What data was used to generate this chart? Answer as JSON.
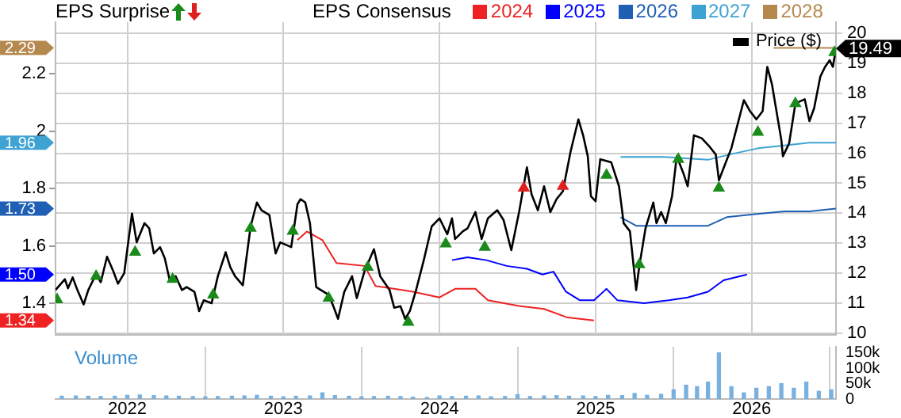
{
  "chart_data": [
    {
      "type": "line",
      "title": "EPS Surprise",
      "legend_title": "EPS Consensus",
      "legend": "top",
      "grid": true,
      "tick_labels": "y",
      "xlim": [
        2021.54,
        2026.54
      ],
      "xticks": [
        2022,
        2023,
        2024,
        2025,
        2026
      ],
      "ylim": [
        1.29,
        2.38
      ],
      "yticks": [
        1.4,
        1.6,
        1.8,
        2,
        2.2
      ],
      "y2lim": [
        9.95,
        20.37
      ],
      "annotations": [
        "2.29",
        "1.96",
        "1.73",
        "1.50",
        "1.34"
      ],
      "y2ticks": [
        10,
        11,
        12,
        13,
        14,
        15,
        16,
        17,
        18,
        19,
        20
      ],
      "series": [
        {
          "name": "Price ($)",
          "axis": "y2",
          "color": "#000000",
          "x": [
            2021.54,
            2021.6,
            2021.62,
            2021.65,
            2021.68,
            2021.72,
            2021.75,
            2021.8,
            2021.83,
            2021.87,
            2021.91,
            2021.94,
            2021.98,
            2022.0,
            2022.03,
            2022.06,
            2022.11,
            2022.14,
            2022.17,
            2022.21,
            2022.24,
            2022.27,
            2022.31,
            2022.35,
            2022.38,
            2022.43,
            2022.46,
            2022.49,
            2022.54,
            2022.58,
            2022.63,
            2022.66,
            2022.69,
            2022.74,
            2022.79,
            2022.83,
            2022.86,
            2022.91,
            2022.95,
            2022.98,
            2023.05,
            2023.09,
            2023.11,
            2023.14,
            2023.17,
            2023.21,
            2023.24,
            2023.29,
            2023.32,
            2023.35,
            2023.39,
            2023.44,
            2023.47,
            2023.52,
            2023.58,
            2023.62,
            2023.68,
            2023.71,
            2023.75,
            2023.78,
            2023.81,
            2023.85,
            2023.9,
            2023.95,
            2024.0,
            2024.05,
            2024.08,
            2024.1,
            2024.15,
            2024.18,
            2024.23,
            2024.27,
            2024.31,
            2024.37,
            2024.41,
            2024.46,
            2024.51,
            2024.56,
            2024.59,
            2024.63,
            2024.67,
            2024.71,
            2024.75,
            2024.79,
            2024.84,
            2024.89,
            2024.92,
            2024.95,
            2024.97,
            2025.0,
            2025.03,
            2025.1,
            2025.15,
            2025.18,
            2025.22,
            2025.26,
            2025.28,
            2025.32,
            2025.37,
            2025.39,
            2025.42,
            2025.45,
            2025.49,
            2025.52,
            2025.56,
            2025.59,
            2025.63,
            2025.68,
            2025.73,
            2025.77,
            2025.79,
            2025.83,
            2025.87,
            2025.91,
            2025.95,
            2025.99,
            2026.03,
            2026.07,
            2026.1,
            2026.13,
            2026.19,
            2026.2,
            2026.24,
            2026.28,
            2026.34,
            2026.37,
            2026.4,
            2026.44,
            2026.47,
            2026.5,
            2026.52,
            2026.54
          ],
          "values": [
            11.44,
            11.8,
            11.5,
            11.86,
            11.44,
            10.96,
            11.44,
            11.97,
            11.7,
            12.55,
            12.07,
            11.65,
            12.0,
            12.8,
            13.99,
            13.03,
            13.67,
            13.5,
            12.66,
            12.87,
            12.5,
            11.8,
            11.9,
            11.44,
            11.54,
            11.38,
            10.74,
            11.1,
            11.0,
            11.9,
            12.7,
            12.2,
            11.9,
            11.6,
            13.56,
            14.36,
            14.1,
            13.94,
            12.66,
            13.03,
            12.87,
            14.3,
            14.47,
            14.36,
            13.67,
            11.54,
            11.44,
            11.28,
            10.9,
            10.48,
            11.38,
            11.9,
            11.17,
            12.07,
            12.8,
            11.9,
            11.44,
            10.85,
            10.9,
            10.48,
            10.74,
            11.44,
            12.45,
            13.56,
            13.83,
            13.3,
            13.83,
            13.14,
            13.4,
            13.5,
            14.04,
            13.14,
            13.83,
            14.1,
            13.78,
            12.77,
            14.04,
            15.53,
            14.63,
            14.1,
            14.9,
            14.04,
            14.47,
            14.73,
            16.06,
            17.13,
            16.6,
            15.9,
            14.57,
            14.4,
            15.8,
            15.7,
            14.9,
            13.67,
            13.4,
            11.44,
            12.23,
            13.5,
            14.36,
            13.67,
            14.04,
            13.67,
            14.57,
            15.9,
            15.37,
            14.9,
            16.6,
            16.5,
            16.22,
            15.96,
            15.1,
            15.64,
            16.17,
            16.97,
            17.77,
            17.4,
            17.13,
            17.4,
            18.88,
            18.3,
            16.44,
            15.9,
            16.33,
            17.66,
            17.8,
            17.07,
            17.5,
            18.56,
            18.88,
            19.1,
            18.88,
            19.49
          ],
          "value_labels": [
            null,
            null,
            null,
            null,
            null,
            null,
            null,
            null,
            null,
            null,
            null,
            null,
            null,
            null,
            null,
            null,
            null,
            null,
            null,
            null,
            null,
            null,
            null,
            null,
            null,
            null,
            null,
            null,
            null,
            null,
            null,
            null,
            null,
            null,
            null,
            null,
            null,
            null,
            null,
            null,
            null,
            null,
            null,
            null,
            null,
            null,
            null,
            null,
            null,
            null,
            null,
            null,
            null,
            null,
            null,
            null,
            null,
            null,
            null,
            null,
            null,
            null,
            null,
            null,
            null,
            null,
            null,
            null,
            null,
            null,
            null,
            null,
            null,
            null,
            null,
            null,
            null,
            null,
            null,
            null,
            null,
            null,
            null,
            null,
            null,
            null,
            null,
            null,
            null,
            null,
            null,
            null,
            null,
            null,
            null,
            null,
            null,
            null,
            null,
            null,
            null,
            null,
            null,
            null,
            null,
            null,
            null,
            null,
            null,
            null,
            null,
            null,
            null,
            null,
            null,
            null,
            null,
            null,
            null,
            null,
            null,
            null,
            null,
            null,
            null,
            null,
            null,
            null,
            null,
            null,
            null,
            "19.49"
          ]
        },
        {
          "name": "2024",
          "axis": "y",
          "color": "#ee2222",
          "x": [
            2023.09,
            2023.15,
            2023.25,
            2023.34,
            2023.52,
            2023.59,
            2023.83,
            2024.0,
            2024.1,
            2024.23,
            2024.31,
            2024.51,
            2024.67,
            2024.82,
            2024.99
          ],
          "values": [
            1.62,
            1.65,
            1.62,
            1.54,
            1.53,
            1.46,
            1.44,
            1.42,
            1.45,
            1.45,
            1.41,
            1.39,
            1.38,
            1.35,
            1.34
          ]
        },
        {
          "name": "2025",
          "axis": "y",
          "color": "#0000ff",
          "x": [
            2024.08,
            2024.18,
            2024.3,
            2024.43,
            2024.56,
            2024.66,
            2024.73,
            2024.81,
            2024.9,
            2024.99,
            2025.07,
            2025.14,
            2025.31,
            2025.47,
            2025.59,
            2025.72,
            2025.82,
            2025.97
          ],
          "values": [
            1.55,
            1.56,
            1.55,
            1.53,
            1.52,
            1.5,
            1.51,
            1.44,
            1.41,
            1.41,
            1.45,
            1.41,
            1.4,
            1.41,
            1.42,
            1.44,
            1.48,
            1.5
          ]
        },
        {
          "name": "2026",
          "axis": "y",
          "color": "#1f5fb4",
          "x": [
            2025.16,
            2025.26,
            2025.37,
            2025.54,
            2025.72,
            2025.84,
            2026.01,
            2026.21,
            2026.37,
            2026.54
          ],
          "values": [
            1.7,
            1.67,
            1.67,
            1.67,
            1.67,
            1.7,
            1.71,
            1.72,
            1.72,
            1.73
          ]
        },
        {
          "name": "2027",
          "axis": "y",
          "color": "#3ea3d3",
          "x": [
            2025.16,
            2025.44,
            2025.72,
            2025.87,
            2026.04,
            2026.21,
            2026.37,
            2026.54
          ],
          "values": [
            1.91,
            1.91,
            1.9,
            1.92,
            1.94,
            1.95,
            1.96,
            1.96
          ]
        },
        {
          "name": "2028",
          "axis": "y",
          "color": "#b5894e",
          "x": [
            2026.14,
            2026.54
          ],
          "values": [
            2.29,
            2.29
          ]
        },
        {
          "type": "scatter",
          "axis": "y2",
          "marker": "triangle",
          "color": "#1a8a1a",
          "x": [
            2021.55,
            2021.8,
            2022.05,
            2022.29,
            2022.55,
            2022.79,
            2023.06,
            2023.29,
            2023.54,
            2023.8,
            2024.04,
            2024.29,
            2025.07,
            2025.28,
            2025.53,
            2025.79,
            2026.04,
            2026.28,
            2026.53
          ],
          "values": [
            11.12,
            11.9,
            12.7,
            11.8,
            11.28,
            13.5,
            13.4,
            11.17,
            12.2,
            10.37,
            12.98,
            12.87,
            15.27,
            12.29,
            15.8,
            14.84,
            16.7,
            17.66,
            19.36
          ]
        },
        {
          "type": "scatter",
          "axis": "y2",
          "marker": "triangle",
          "color": "#e02020",
          "x": [
            2024.54,
            2024.79
          ],
          "values": [
            14.84,
            14.9
          ]
        }
      ]
    },
    {
      "type": "bar",
      "title": "Volume",
      "grid": "x",
      "color": "#78b0e0",
      "xlim": [
        2021.54,
        2026.54
      ],
      "xticks": [
        2022,
        2023,
        2024,
        2025,
        2026
      ],
      "ylim": [
        0,
        170000
      ],
      "yticks": [
        0,
        {
          "value": 50000,
          "label": "50k"
        },
        {
          "value": 100000,
          "label": "100k"
        },
        {
          "value": 150000,
          "label": "150k"
        }
      ],
      "x": [
        2021.58,
        2021.67,
        2021.75,
        2021.83,
        2021.92,
        2022.0,
        2022.08,
        2022.17,
        2022.25,
        2022.33,
        2022.42,
        2022.5,
        2022.58,
        2022.67,
        2022.75,
        2022.83,
        2022.92,
        2023.0,
        2023.08,
        2023.17,
        2023.25,
        2023.33,
        2023.42,
        2023.5,
        2023.58,
        2023.67,
        2023.75,
        2023.83,
        2023.92,
        2024.0,
        2024.08,
        2024.17,
        2024.25,
        2024.33,
        2024.42,
        2024.5,
        2024.58,
        2024.67,
        2024.75,
        2024.83,
        2024.92,
        2025.0,
        2025.08,
        2025.17,
        2025.25,
        2025.33,
        2025.42,
        2025.5,
        2025.58,
        2025.65,
        2025.72,
        2025.79,
        2025.87,
        2025.95,
        2026.03,
        2026.11,
        2026.19,
        2026.27,
        2026.35,
        2026.43,
        2026.51
      ],
      "values": [
        9000,
        10000,
        9000,
        8000,
        9000,
        12000,
        13000,
        11000,
        10000,
        9000,
        8000,
        7000,
        8000,
        9000,
        10000,
        12000,
        9000,
        7000,
        9000,
        10000,
        20000,
        11000,
        9000,
        7000,
        8000,
        9000,
        8000,
        6000,
        5000,
        10000,
        8000,
        9000,
        10000,
        7000,
        8000,
        14000,
        8000,
        10000,
        11000,
        9000,
        10000,
        8000,
        12000,
        11000,
        18000,
        12000,
        15000,
        30000,
        45000,
        40000,
        55000,
        150000,
        40000,
        20000,
        35000,
        40000,
        50000,
        35000,
        55000,
        25000,
        30000
      ]
    }
  ]
}
